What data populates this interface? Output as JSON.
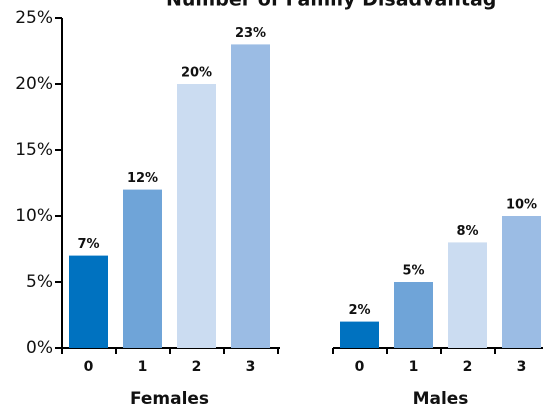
{
  "chart_data": {
    "type": "bar",
    "title": "Number of Family Disadvantag",
    "categories": [
      "0",
      "1",
      "2",
      "3"
    ],
    "colors": [
      "#0072c0",
      "#6fa4d8",
      "#cbdcf1",
      "#9bbce4"
    ],
    "series": [
      {
        "name": "Females",
        "values": [
          7,
          12,
          20,
          23
        ],
        "value_labels": [
          "7%",
          "12%",
          "20%",
          "23%"
        ]
      },
      {
        "name": "Males",
        "values": [
          2,
          5,
          8,
          10
        ],
        "value_labels": [
          "2%",
          "5%",
          "8%",
          "10%"
        ]
      }
    ],
    "ylim": [
      0,
      25
    ],
    "yticks": [
      {
        "value": 0,
        "label": "0%"
      },
      {
        "value": 5,
        "label": "5%"
      },
      {
        "value": 10,
        "label": "10%"
      },
      {
        "value": 15,
        "label": "15%"
      },
      {
        "value": 20,
        "label": "20%"
      },
      {
        "value": 25,
        "label": "25%"
      }
    ]
  }
}
